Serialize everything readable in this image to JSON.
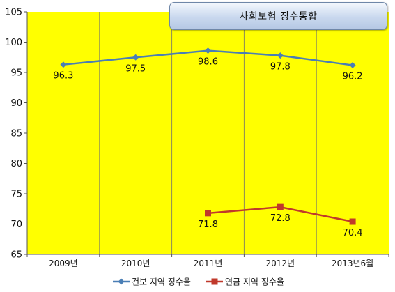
{
  "chart_data": {
    "type": "line",
    "title": "사회보험 징수통합",
    "categories": [
      "2009년",
      "2010년",
      "2011년",
      "2012년",
      "2013년6월"
    ],
    "series": [
      {
        "name": "건보 지역 징수율",
        "color": "#4a7eb5",
        "marker": "diamond",
        "values": [
          96.3,
          97.5,
          98.6,
          97.8,
          96.2
        ],
        "labels": [
          "96.3",
          "97.5",
          "98.6",
          "97.8",
          "96.2"
        ]
      },
      {
        "name": "연금 지역 징수율",
        "color": "#c0392b",
        "marker": "square",
        "values": [
          null,
          null,
          71.8,
          72.8,
          70.4
        ],
        "labels": [
          "",
          "",
          "71.8",
          "72.8",
          "70.4"
        ]
      }
    ],
    "ylim": [
      65,
      105
    ],
    "yticks": [
      65,
      70,
      75,
      80,
      85,
      90,
      95,
      100,
      105
    ],
    "plot_background": "#ffff00",
    "grid": "vertical category separators",
    "legend_position": "bottom"
  }
}
